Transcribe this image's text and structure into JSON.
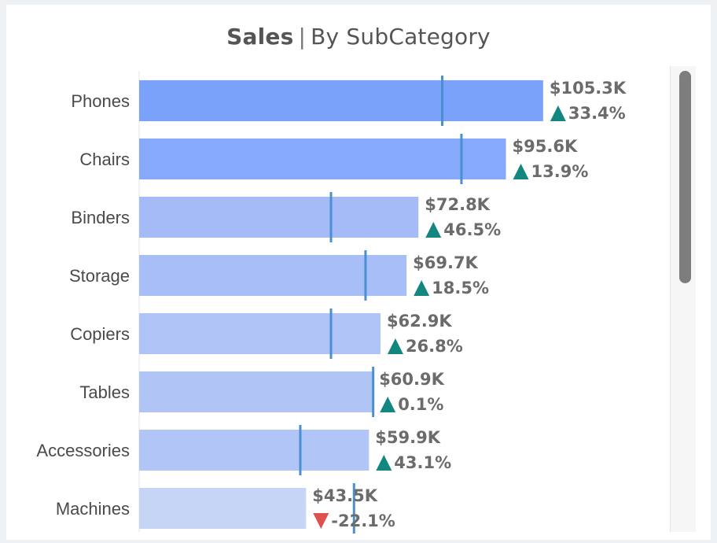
{
  "header": {
    "title_main": "Sales",
    "separator": "|",
    "title_sub": "By SubCategory"
  },
  "colors": {
    "up": "#12877f",
    "down": "#e0504d",
    "target_line": "#4a90d0",
    "label": "#6b6b6b"
  },
  "chart_data": {
    "type": "bar",
    "orientation": "horizontal",
    "title": "Sales | By SubCategory",
    "categories": [
      "Phones",
      "Chairs",
      "Binders",
      "Storage",
      "Copiers",
      "Tables",
      "Accessories",
      "Machines"
    ],
    "values": [
      105.3,
      95.6,
      72.8,
      69.7,
      62.9,
      60.9,
      59.9,
      43.5
    ],
    "value_labels": [
      "$105.3K",
      "$95.6K",
      "$72.8K",
      "$69.7K",
      "$62.9K",
      "$60.9K",
      "$59.9K",
      "$43.5K"
    ],
    "change_labels": [
      "33.4%",
      "13.9%",
      "46.5%",
      "18.5%",
      "26.8%",
      "0.1%",
      "43.1%",
      "-22.1%"
    ],
    "change_direction": [
      "up",
      "up",
      "up",
      "up",
      "up",
      "up",
      "up",
      "down"
    ],
    "reference_values": [
      79.0,
      84.0,
      50.0,
      59.0,
      50.0,
      61.0,
      42.0,
      56.0
    ],
    "bar_colors": [
      "#7ba2fb",
      "#87a9fb",
      "#a4bbf7",
      "#a8bef7",
      "#afc3f6",
      "#b0c4f6",
      "#b1c5f6",
      "#c6d4f6"
    ],
    "xlim": [
      0,
      110
    ],
    "grid": false,
    "legend": "none"
  }
}
